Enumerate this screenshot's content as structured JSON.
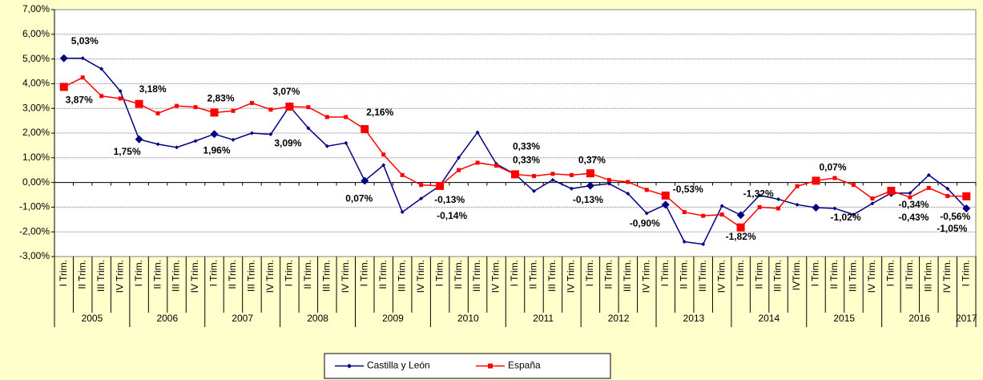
{
  "chart_data": {
    "type": "line",
    "categories": [
      "I Trim.",
      "II Trim.",
      "III Trim.",
      "IV Trim.",
      "I Trim.",
      "II Trim.",
      "III Trim.",
      "IV Trim.",
      "I Trim.",
      "II Trim.",
      "III Trim.",
      "IV Trim.",
      "I Trim.",
      "II Trim.",
      "III Trim.",
      "IV Trim.",
      "I Trim.",
      "II Trim.",
      "III Trim.",
      "IV Trim.",
      "I Trim.",
      "II Trim.",
      "III Trim.",
      "IV Trim.",
      "I Trim.",
      "II Trim.",
      "III Trim.",
      "IV Trim.",
      "I Trim.",
      "II Trim.",
      "III Trim.",
      "IV Trim.",
      "I Trim.",
      "II Trim.",
      "III Trim.",
      "IV Trim.",
      "I Trim.",
      "II Trim.",
      "III Trim.",
      "IVTrim.",
      "I Trim.",
      "II Trim.",
      "III Trim.",
      "IV Trim.",
      "I Trim.",
      "II Trim.",
      "III Trim.",
      "IV Trim.",
      "I Trim."
    ],
    "years": [
      "2005",
      "2006",
      "2007",
      "2008",
      "2009",
      "2010",
      "2011",
      "2012",
      "2013",
      "2014",
      "2015",
      "2016",
      "2017"
    ],
    "series": [
      {
        "name": "Castilla y León",
        "color": "#000080",
        "label_color": "#1c1c8e",
        "values": [
          5.03,
          5.03,
          4.6,
          3.7,
          1.75,
          1.55,
          1.42,
          1.68,
          1.96,
          1.73,
          2.0,
          1.95,
          3.09,
          2.2,
          1.47,
          1.6,
          0.07,
          0.7,
          -1.2,
          -0.65,
          -0.13,
          1.0,
          2.03,
          0.75,
          0.33,
          -0.35,
          0.1,
          -0.25,
          -0.13,
          -0.05,
          -0.45,
          -1.25,
          -0.9,
          -2.4,
          -2.5,
          -0.95,
          -1.32,
          -0.52,
          -0.68,
          -0.9,
          -1.02,
          -1.05,
          -1.3,
          -0.85,
          -0.43,
          -0.43,
          0.3,
          -0.25,
          -1.05
        ],
        "value_labels": [
          "5,03%",
          null,
          null,
          null,
          "1,75%",
          null,
          null,
          null,
          "1,96%",
          null,
          null,
          null,
          "3,09%",
          null,
          null,
          null,
          "0,07%",
          null,
          null,
          null,
          "-0,13%",
          null,
          null,
          null,
          "0,33%",
          null,
          null,
          null,
          "-0,13%",
          null,
          null,
          null,
          "-0,90%",
          null,
          null,
          null,
          "-1,32%",
          null,
          null,
          null,
          "-1,02%",
          null,
          null,
          null,
          "-0,43%",
          null,
          null,
          null,
          "-1,05%"
        ]
      },
      {
        "name": "España",
        "color": "#ff0000",
        "label_color": "#ff0000",
        "values": [
          3.87,
          4.25,
          3.5,
          3.4,
          3.18,
          2.8,
          3.1,
          3.05,
          2.83,
          2.9,
          3.22,
          2.95,
          3.07,
          3.05,
          2.65,
          2.65,
          2.16,
          1.13,
          0.3,
          -0.1,
          -0.14,
          0.5,
          0.8,
          0.68,
          0.33,
          0.26,
          0.35,
          0.3,
          0.37,
          0.1,
          0.02,
          -0.3,
          -0.53,
          -1.2,
          -1.35,
          -1.3,
          -1.82,
          -1.0,
          -1.05,
          -0.15,
          0.07,
          0.18,
          -0.1,
          -0.65,
          -0.34,
          -0.6,
          -0.22,
          -0.55,
          -0.56
        ],
        "value_labels": [
          "3,87%",
          null,
          null,
          null,
          "3,18%",
          null,
          null,
          null,
          "2,83%",
          null,
          null,
          null,
          "3,07%",
          null,
          null,
          null,
          "2,16%",
          null,
          null,
          null,
          "-0,14%",
          null,
          null,
          null,
          "0,33%",
          null,
          null,
          null,
          "0,37%",
          null,
          null,
          null,
          "-0,53%",
          null,
          null,
          null,
          "-1,82%",
          null,
          null,
          null,
          "0,07%",
          null,
          null,
          null,
          "-0,34%",
          null,
          null,
          null,
          "-0,56%"
        ]
      }
    ],
    "ylim": [
      -3,
      7
    ],
    "yticks": [
      {
        "value": -3,
        "label": "-3,00%"
      },
      {
        "value": -2,
        "label": "-2,00%"
      },
      {
        "value": -1,
        "label": "-1,00%"
      },
      {
        "value": 0,
        "label": "0,00%"
      },
      {
        "value": 1,
        "label": "1,00%"
      },
      {
        "value": 2,
        "label": "2,00%"
      },
      {
        "value": 3,
        "label": "3,00%"
      },
      {
        "value": 4,
        "label": "4,00%"
      },
      {
        "value": 5,
        "label": "5,00%"
      },
      {
        "value": 6,
        "label": "6,00%"
      },
      {
        "value": 7,
        "label": "7,00%"
      }
    ],
    "grid": true,
    "legend": "bottom"
  }
}
